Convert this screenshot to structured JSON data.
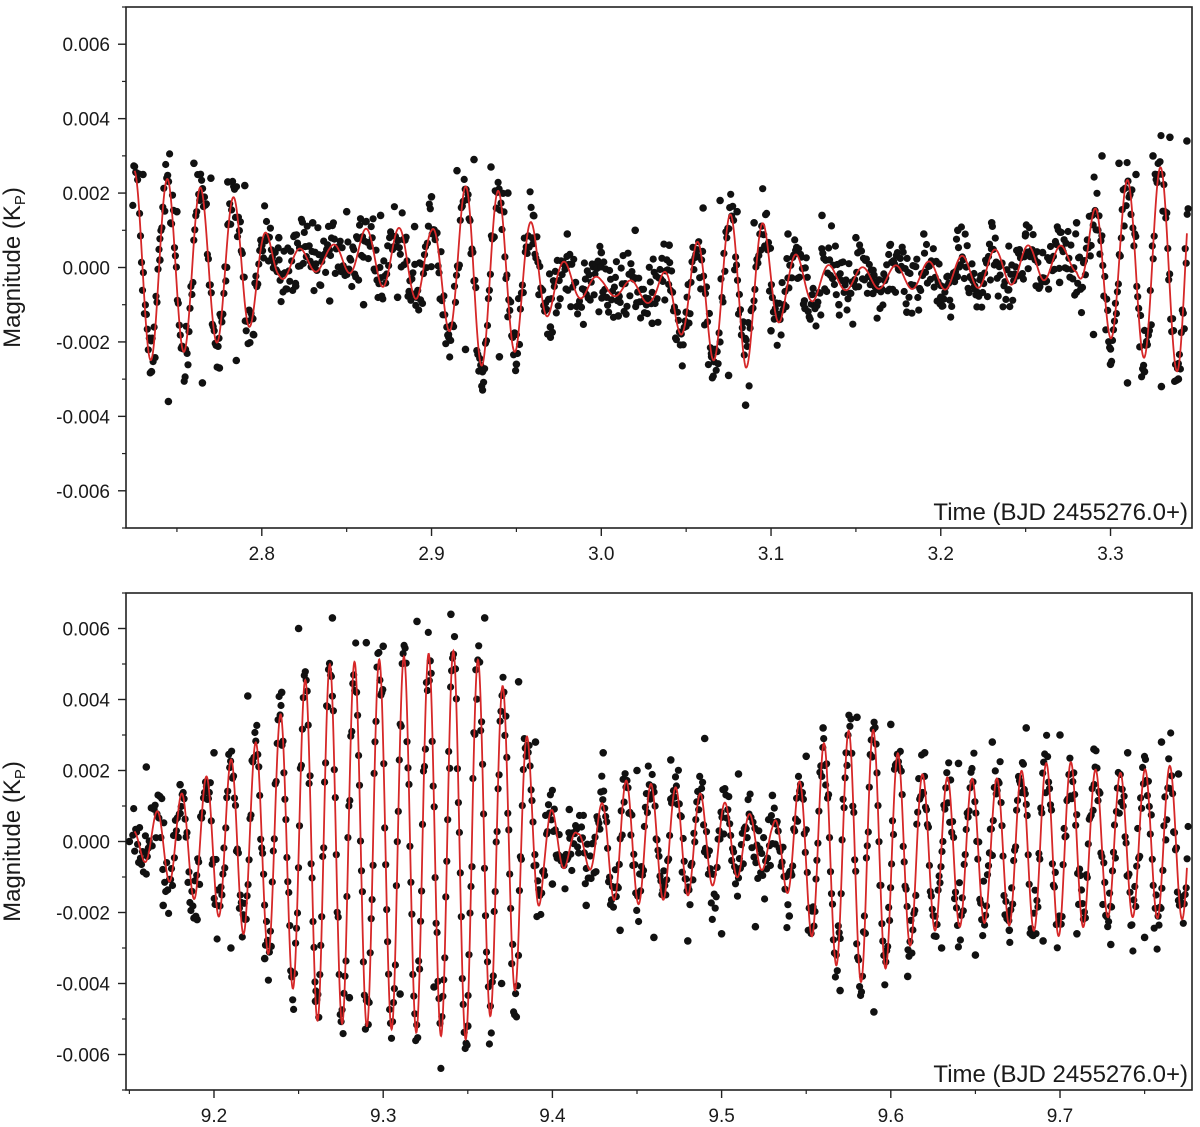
{
  "chart_data": [
    {
      "type": "scatter",
      "title": "",
      "xlabel": "Time (BJD 2455276.0+)",
      "ylabel": "Magnitude (K",
      "ylabel_sub": "P",
      "ylabel_close": ")",
      "xlim": [
        2.72,
        3.348
      ],
      "ylim": [
        -0.007,
        0.007
      ],
      "xticks": [
        2.8,
        2.9,
        3.0,
        3.1,
        3.2,
        3.3
      ],
      "xtick_labels": [
        "2.8",
        "2.9",
        "3.0",
        "3.1",
        "3.2",
        "3.3"
      ],
      "yticks": [
        0.006,
        0.004,
        0.002,
        0.0,
        -0.002,
        -0.004,
        -0.006
      ],
      "ytick_labels": [
        "0.006",
        "0.004",
        "0.002",
        "0.000",
        "-0.002",
        "-0.004",
        "-0.006"
      ],
      "grid": false,
      "series": [
        {
          "kind": "points",
          "color": "#111111",
          "x": [
            2.73,
            2.735,
            2.74,
            2.745,
            2.75,
            2.755,
            2.76,
            2.765,
            2.77,
            2.775,
            2.78,
            2.785,
            2.79,
            2.795,
            2.8,
            2.81,
            2.82,
            2.83,
            2.84,
            2.85,
            2.86,
            2.87,
            2.88,
            2.89,
            2.9,
            2.91,
            2.915,
            2.92,
            2.925,
            2.93,
            2.935,
            2.94,
            2.945,
            2.95,
            2.96,
            2.97,
            2.98,
            2.99,
            3.0,
            3.01,
            3.02,
            3.03,
            3.04,
            3.05,
            3.06,
            3.065,
            3.07,
            3.075,
            3.08,
            3.085,
            3.09,
            3.1,
            3.11,
            3.12,
            3.13,
            3.14,
            3.15,
            3.16,
            3.17,
            3.18,
            3.19,
            3.2,
            3.21,
            3.22,
            3.23,
            3.24,
            3.25,
            3.26,
            3.27,
            3.28,
            3.29,
            3.295,
            3.3,
            3.305,
            3.31,
            3.315,
            3.32,
            3.325,
            3.33,
            3.335,
            3.34,
            3.345
          ],
          "y": [
            0.0025,
            -0.0028,
            0.0002,
            -0.0036,
            0.0015,
            -0.0022,
            0.0028,
            -0.0031,
            0.0024,
            -0.0027,
            0.0023,
            -0.0025,
            0.0022,
            -0.0018,
            0.0006,
            0.0008,
            -0.0005,
            0.0012,
            -0.0009,
            0.0015,
            -0.001,
            0.0014,
            -0.0008,
            0.0011,
            0.0019,
            -0.0018,
            0.0026,
            -0.0022,
            0.0029,
            -0.0028,
            0.0027,
            -0.0024,
            0.002,
            -0.0026,
            0.0014,
            -0.0016,
            0.0009,
            -0.0006,
            0.0004,
            -0.0013,
            0.001,
            -0.0015,
            0.0006,
            -0.0012,
            0.0016,
            -0.0024,
            0.0018,
            -0.0029,
            0.0015,
            -0.0037,
            0.0012,
            -0.0017,
            0.0009,
            -0.0011,
            0.0014,
            -0.001,
            0.0008,
            -0.0007,
            0.0006,
            -0.0012,
            0.0009,
            -0.0008,
            0.001,
            -0.0005,
            0.0012,
            -0.0006,
            0.0009,
            0.0004,
            -0.0004,
            0.0012,
            -0.0018,
            0.003,
            -0.0026,
            0.0028,
            -0.0031,
            0.0025,
            -0.0028,
            0.003,
            -0.0032,
            0.0035,
            -0.003,
            0.0034
          ]
        },
        {
          "kind": "fit-line",
          "color": "#d62728",
          "model": "beating-sinusoid",
          "period_days": 0.0195
        }
      ]
    },
    {
      "type": "scatter",
      "title": "",
      "xlabel": "Time (BJD 2455276.0+)",
      "ylabel": "Magnitude (K",
      "ylabel_sub": "P",
      "ylabel_close": ")",
      "xlim": [
        9.148,
        9.778
      ],
      "ylim": [
        -0.007,
        0.007
      ],
      "xticks": [
        9.2,
        9.3,
        9.4,
        9.5,
        9.6,
        9.7
      ],
      "xtick_labels": [
        "9.2",
        "9.3",
        "9.4",
        "9.5",
        "9.6",
        "9.7"
      ],
      "yticks": [
        0.006,
        0.004,
        0.002,
        0.0,
        -0.002,
        -0.004,
        -0.006
      ],
      "ytick_labels": [
        "0.006",
        "0.004",
        "0.002",
        "0.000",
        "-0.002",
        "-0.004",
        "-0.006"
      ],
      "grid": false,
      "series": [
        {
          "kind": "points",
          "color": "#111111",
          "x": [
            9.15,
            9.16,
            9.17,
            9.18,
            9.19,
            9.2,
            9.21,
            9.22,
            9.23,
            9.24,
            9.25,
            9.26,
            9.27,
            9.28,
            9.29,
            9.3,
            9.31,
            9.32,
            9.33,
            9.34,
            9.35,
            9.36,
            9.37,
            9.38,
            9.39,
            9.4,
            9.41,
            9.42,
            9.43,
            9.44,
            9.45,
            9.46,
            9.47,
            9.48,
            9.49,
            9.5,
            9.51,
            9.52,
            9.53,
            9.54,
            9.55,
            9.56,
            9.57,
            9.58,
            9.59,
            9.6,
            9.61,
            9.62,
            9.63,
            9.64,
            9.65,
            9.66,
            9.67,
            9.68,
            9.69,
            9.7,
            9.71,
            9.72,
            9.73,
            9.74,
            9.75,
            9.76,
            9.77
          ],
          "y": [
            0.0,
            0.0021,
            -0.0018,
            0.0016,
            -0.0022,
            0.0025,
            -0.003,
            0.0041,
            -0.0033,
            0.0042,
            0.006,
            -0.0045,
            0.0063,
            -0.0044,
            0.0056,
            0.0055,
            -0.0043,
            0.0062,
            -0.0041,
            0.0064,
            -0.0052,
            0.0063,
            -0.004,
            0.0045,
            0.0028,
            -0.0012,
            0.0009,
            -0.0018,
            0.0025,
            -0.0025,
            0.002,
            -0.0027,
            0.0023,
            -0.0028,
            0.0029,
            -0.0026,
            0.0019,
            -0.0024,
            0.0013,
            -0.0021,
            0.0024,
            0.0032,
            -0.0042,
            0.0035,
            -0.0048,
            0.0033,
            -0.0038,
            0.0025,
            -0.003,
            0.0022,
            -0.0032,
            0.0028,
            -0.0025,
            0.0032,
            -0.0028,
            0.003,
            -0.0026,
            0.0026,
            -0.0029,
            0.0025,
            -0.0027,
            0.0028,
            0.0019
          ]
        },
        {
          "kind": "fit-line",
          "color": "#d62728",
          "model": "beating-sinusoid",
          "period_days": 0.0146
        }
      ]
    }
  ]
}
